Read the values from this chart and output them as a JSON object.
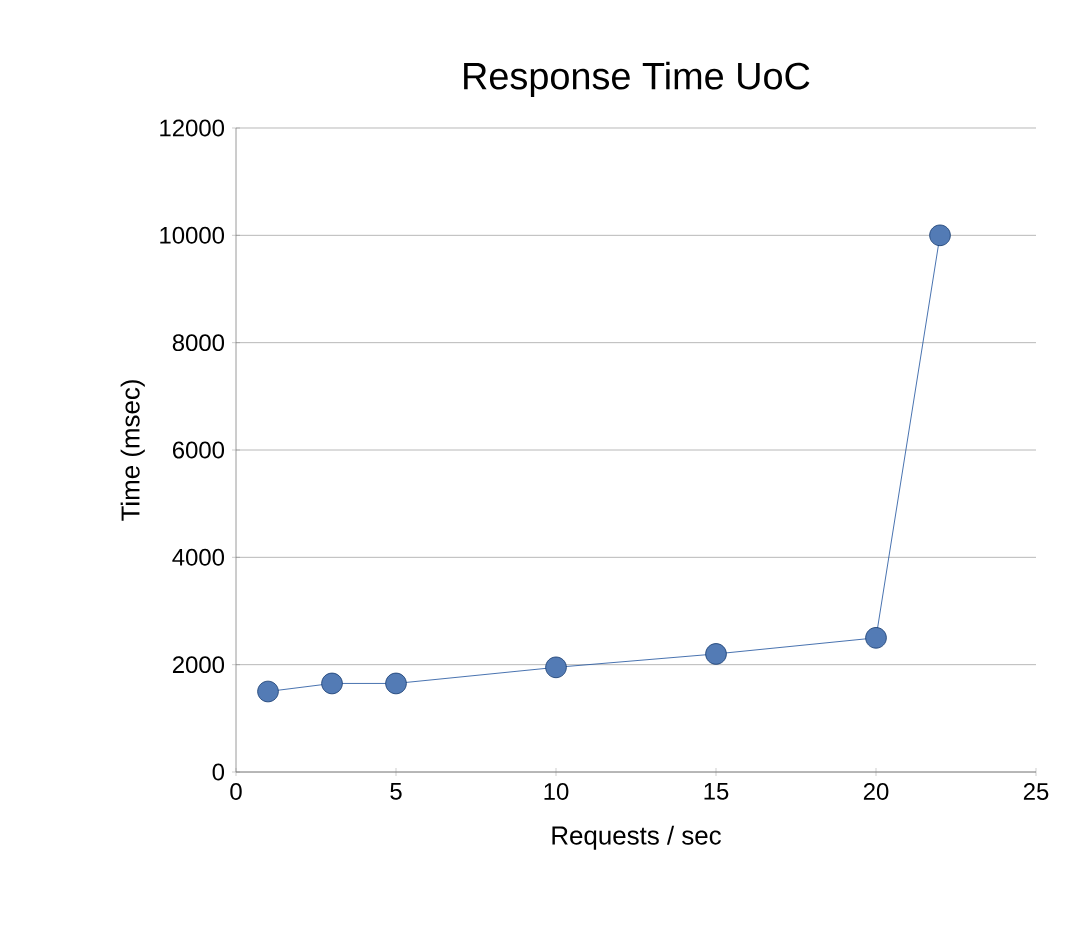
{
  "chart_data": {
    "type": "line",
    "title": "Response Time UoC",
    "xlabel": "Requests / sec",
    "ylabel": "Time (msec)",
    "x": [
      1,
      3,
      5,
      10,
      15,
      20,
      22
    ],
    "series": [
      {
        "color": "#1a4f9c",
        "values": [
          1500,
          1650,
          1650,
          1950,
          2200,
          2500,
          10000
        ]
      }
    ],
    "xlim": [
      0,
      25
    ],
    "ylim": [
      0,
      12000
    ],
    "xticks": [
      0,
      5,
      10,
      15,
      20,
      25
    ],
    "yticks": [
      0,
      2000,
      4000,
      6000,
      8000,
      10000,
      12000
    ],
    "grid": "y",
    "marker": "circle",
    "line_style": "solid"
  }
}
